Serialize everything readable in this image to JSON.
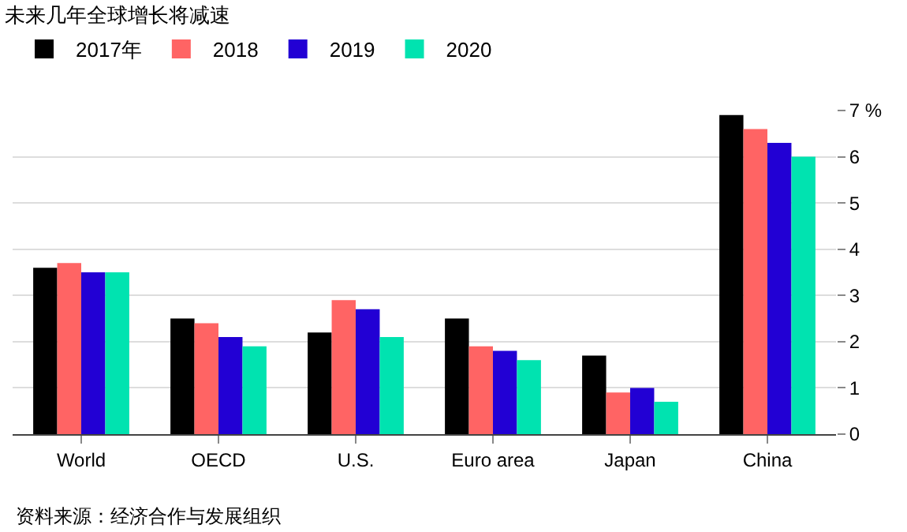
{
  "chart_data": {
    "type": "bar",
    "title": "未来几年全球增长将减速",
    "categories": [
      "World",
      "OECD",
      "U.S.",
      "Euro area",
      "Japan",
      "China"
    ],
    "series": [
      {
        "name": "2017年",
        "color": "#000000",
        "values": [
          3.6,
          2.5,
          2.2,
          2.5,
          1.7,
          6.9
        ]
      },
      {
        "name": "2018",
        "color": "#ff6464",
        "values": [
          3.7,
          2.4,
          2.9,
          1.9,
          0.9,
          6.6
        ]
      },
      {
        "name": "2019",
        "color": "#2200d4",
        "values": [
          3.5,
          2.1,
          2.7,
          1.8,
          1.0,
          6.3
        ]
      },
      {
        "name": "2020",
        "color": "#00e3b0",
        "values": [
          3.5,
          1.9,
          2.1,
          1.6,
          0.7,
          6.0
        ]
      }
    ],
    "ylim": [
      0,
      7
    ],
    "yticks": [
      0,
      1,
      2,
      3,
      4,
      5,
      6,
      {
        "value": 7,
        "label": "7 %"
      }
    ],
    "grid": "y",
    "legend": "top left",
    "annotations": [
      "资料来源：经济合作与发展组织"
    ]
  }
}
